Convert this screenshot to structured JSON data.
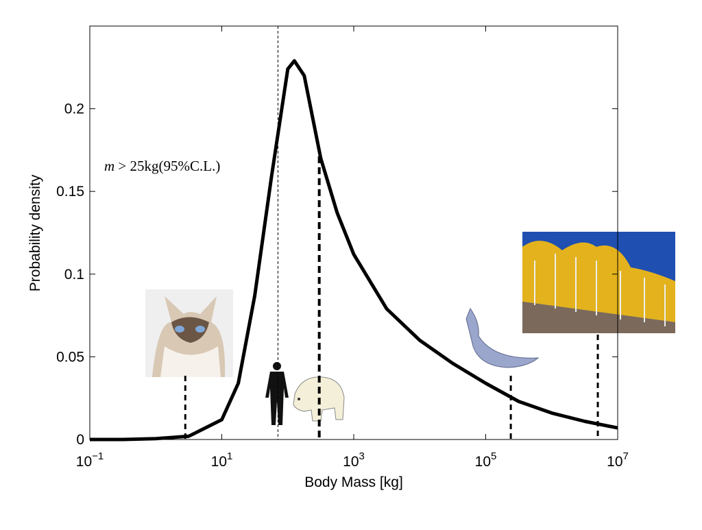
{
  "chart_data": {
    "type": "line",
    "xlabel": "Body Mass [kg]",
    "ylabel": "Probability density",
    "annotation_var": "m",
    "annotation": " > 25kg(95%C.L.)",
    "x": [
      0.1,
      0.3162,
      1,
      3.162,
      10,
      17.78,
      31.62,
      56.23,
      100,
      125.9,
      177.8,
      316.2,
      562.3,
      1000,
      3162,
      10000,
      31620,
      100000,
      316200,
      1000000,
      3162000,
      10000000
    ],
    "values": [
      0,
      0,
      0.0005,
      0.002,
      0.012,
      0.034,
      0.087,
      0.158,
      0.224,
      0.229,
      0.22,
      0.17,
      0.137,
      0.112,
      0.079,
      0.06,
      0.046,
      0.034,
      0.023,
      0.016,
      0.011,
      0.007
    ],
    "color": "#000000",
    "log_x": true,
    "xlim": [
      0.1,
      10000000
    ],
    "ylim": [
      0,
      0.25
    ],
    "xticks": [
      {
        "value": 0.1,
        "label": "10",
        "exponent": "−1"
      },
      {
        "value": 10,
        "label": "10",
        "exponent": "1"
      },
      {
        "value": 1000,
        "label": "10",
        "exponent": "3"
      },
      {
        "value": 100000,
        "label": "10",
        "exponent": "5"
      },
      {
        "value": 10000000,
        "label": "10",
        "exponent": "7"
      }
    ],
    "yticks": [
      0,
      0.05,
      0.1,
      0.15,
      0.2
    ],
    "grid": false,
    "reference_lines": [
      2.8,
      71,
      300,
      240000,
      5000000
    ]
  }
}
